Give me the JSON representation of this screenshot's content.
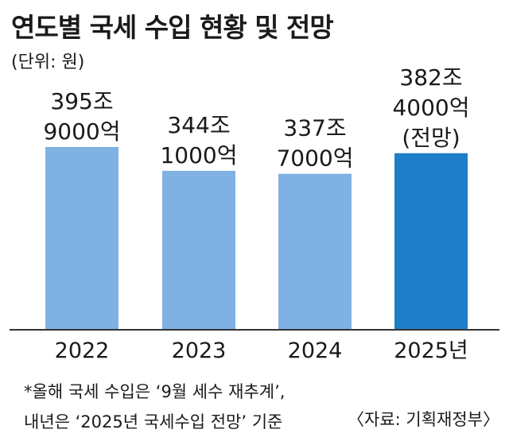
{
  "title": "연도별 국세 수입 현황 및 전망",
  "unit": "(단위: 원)",
  "footnote": {
    "line1": "*올해 국세 수입은 ‘9월 세수 재추계’,",
    "line2": "내년은 ‘2025년 국세수입 전망’ 기준"
  },
  "source": "〈자료: 기획재정부〉",
  "colors": {
    "actual": "#7fb1e3",
    "forecast": "#1e7fc8"
  },
  "chart_data": {
    "type": "bar",
    "title": "연도별 국세 수입 현황 및 전망",
    "unit": "원",
    "categories": [
      "2022",
      "2023",
      "2024",
      "2025년"
    ],
    "values_trillion_won": [
      395.9,
      344.1,
      337.7,
      382.4
    ],
    "data_labels": [
      [
        "395조",
        "9000억"
      ],
      [
        "344조",
        "1000억"
      ],
      [
        "337조",
        "7000억"
      ],
      [
        "382조",
        "4000억",
        "(전망)"
      ]
    ],
    "forecast_index": 3,
    "grid": false,
    "legend": "none"
  }
}
